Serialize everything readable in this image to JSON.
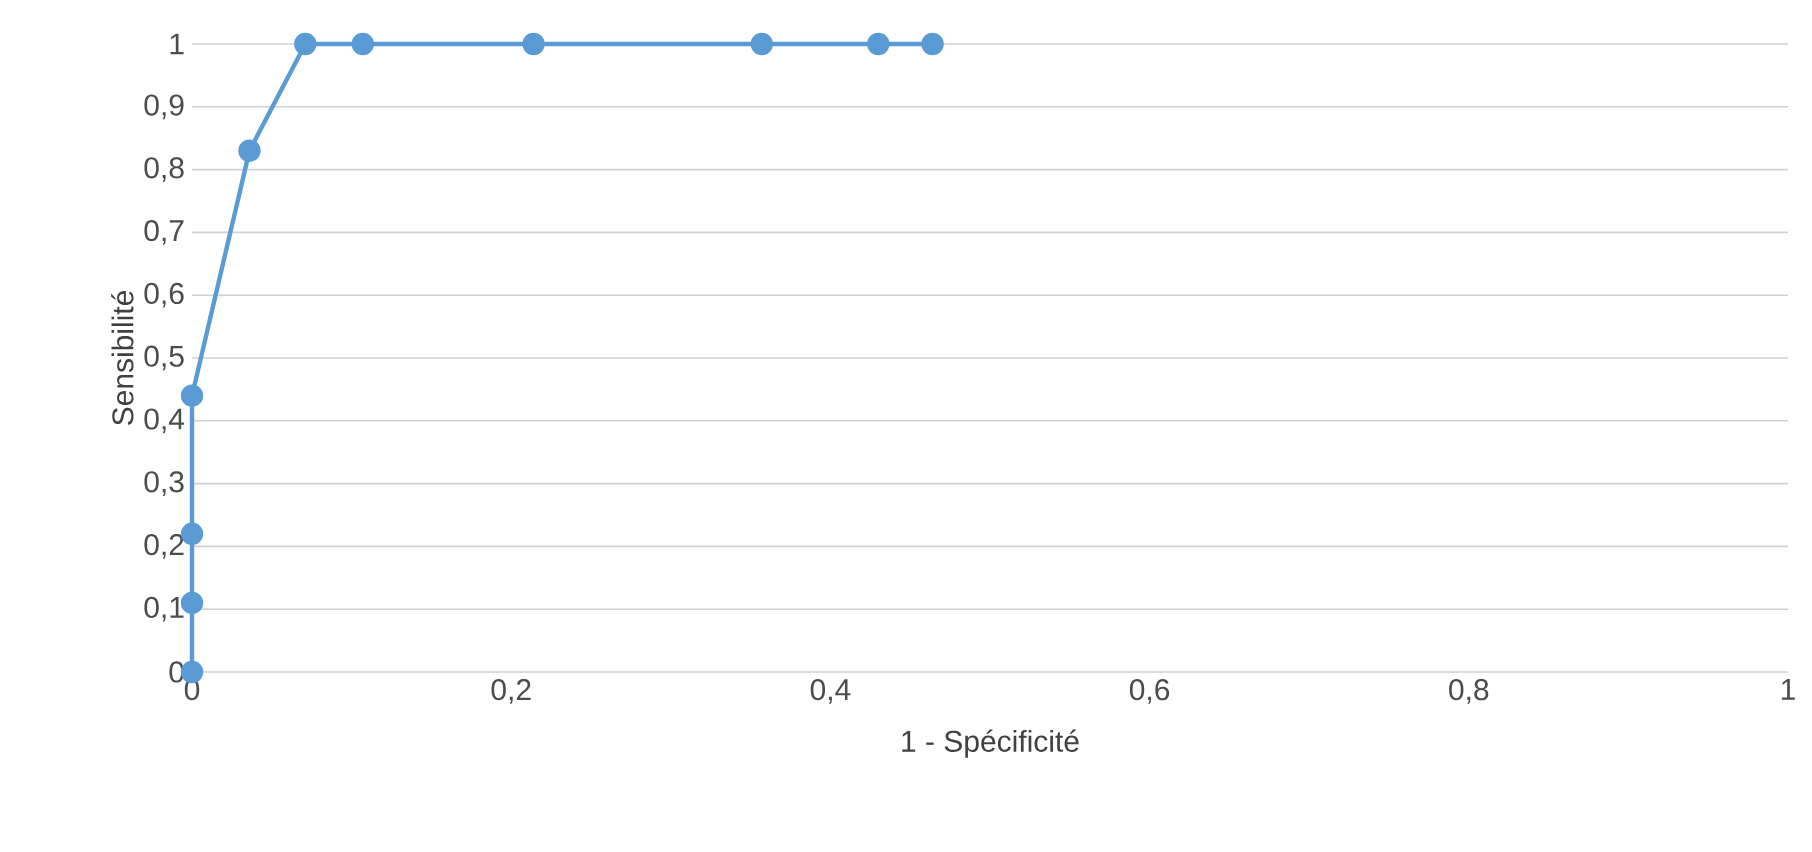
{
  "chart_data": {
    "type": "line",
    "xlabel": "1 - Spécificité",
    "ylabel": "Sensibilité",
    "xlim": [
      0,
      1
    ],
    "ylim": [
      0,
      1
    ],
    "xticks": [
      0,
      {
        "value": 0.2,
        "label": "0,2"
      },
      {
        "value": 0.4,
        "label": "0,4"
      },
      {
        "value": 0.6,
        "label": "0,6"
      },
      {
        "value": 0.8,
        "label": "0,8"
      },
      1
    ],
    "yticks": [
      0,
      {
        "value": 0.1,
        "label": "0,1"
      },
      {
        "value": 0.2,
        "label": "0,2"
      },
      {
        "value": 0.3,
        "label": "0,3"
      },
      {
        "value": 0.4,
        "label": "0,4"
      },
      {
        "value": 0.5,
        "label": "0,5"
      },
      {
        "value": 0.6,
        "label": "0,6"
      },
      {
        "value": 0.7,
        "label": "0,7"
      },
      {
        "value": 0.8,
        "label": "0,8"
      },
      {
        "value": 0.9,
        "label": "0,9"
      },
      1
    ],
    "grid": "y",
    "marker": "circle",
    "line_style": "solid",
    "series": [
      {
        "color": "#5b9bd5",
        "x": [
          0,
          0,
          0,
          0,
          0.036,
          0.071,
          0.107,
          0.214,
          0.357,
          0.43,
          0.464
        ],
        "values": [
          0,
          0.11,
          0.22,
          0.44,
          0.83,
          1,
          1,
          1,
          1,
          1,
          1
        ]
      }
    ]
  }
}
